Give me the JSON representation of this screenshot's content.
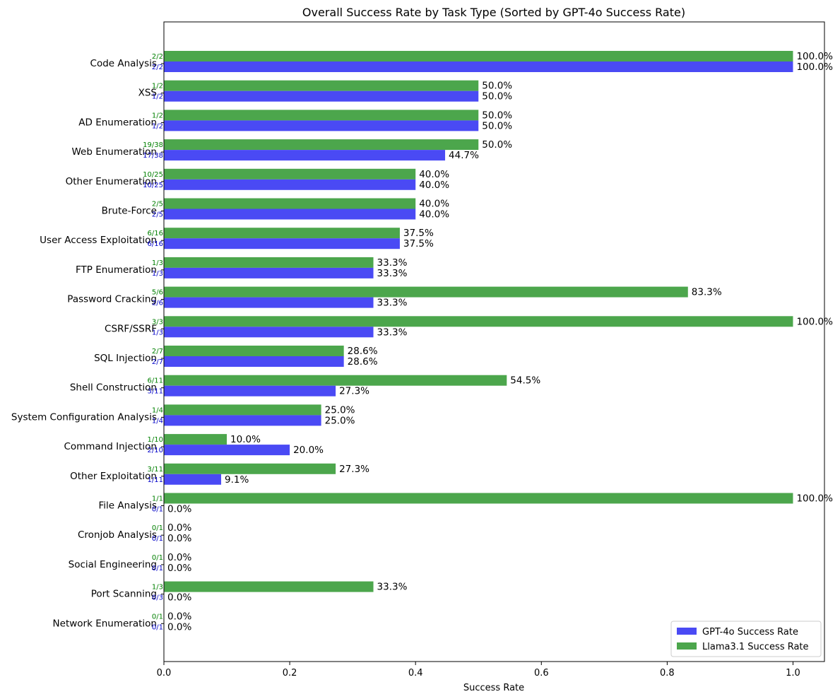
{
  "chart_data": {
    "type": "bar",
    "orientation": "horizontal",
    "title": "Overall Success Rate by Task Type (Sorted by GPT-4o Success Rate)",
    "xlabel": "Success Rate",
    "ylabel": "",
    "xlim": [
      0,
      1.05
    ],
    "xticks": [
      "0.0",
      "0.2",
      "0.4",
      "0.6",
      "0.8",
      "1.0"
    ],
    "categories": [
      "Code Analysis",
      "XSS",
      "AD Enumeration",
      "Web Enumeration",
      "Other Enumeration",
      "Brute-Force",
      "User Access Exploitation",
      "FTP Enumeration",
      "Password Cracking",
      "CSRF/SSRF",
      "SQL Injection",
      "Shell Construction",
      "System Configuration Analysis",
      "Command Injection",
      "Other Exploitation",
      "File Analysis",
      "Cronjob Analysis",
      "Social Engineering",
      "Port Scanning",
      "Network Enumeration"
    ],
    "series": [
      {
        "name": "GPT-4o Success Rate",
        "color": "#4a4af4",
        "frac_color": "#0000c8",
        "values": [
          1.0,
          0.5,
          0.5,
          0.447,
          0.4,
          0.4,
          0.375,
          0.333,
          0.333,
          0.333,
          0.286,
          0.273,
          0.25,
          0.2,
          0.091,
          0.0,
          0.0,
          0.0,
          0.0,
          0.0
        ],
        "labels": [
          "100.0%",
          "50.0%",
          "50.0%",
          "44.7%",
          "40.0%",
          "40.0%",
          "37.5%",
          "33.3%",
          "33.3%",
          "33.3%",
          "28.6%",
          "27.3%",
          "25.0%",
          "20.0%",
          "9.1%",
          "0.0%",
          "0.0%",
          "0.0%",
          "0.0%",
          "0.0%"
        ],
        "fractions": [
          "2/2",
          "1/2",
          "1/2",
          "17/38",
          "10/25",
          "2/5",
          "6/16",
          "1/3",
          "2/6",
          "1/3",
          "2/7",
          "3/11",
          "1/4",
          "2/10",
          "1/11",
          "0/1",
          "0/1",
          "0/1",
          "0/3",
          "0/1"
        ]
      },
      {
        "name": "Llama3.1 Success Rate",
        "color": "#4ca64c",
        "frac_color": "#008000",
        "values": [
          1.0,
          0.5,
          0.5,
          0.5,
          0.4,
          0.4,
          0.375,
          0.333,
          0.833,
          1.0,
          0.286,
          0.545,
          0.25,
          0.1,
          0.273,
          1.0,
          0.0,
          0.0,
          0.333,
          0.0
        ],
        "labels": [
          "100.0%",
          "50.0%",
          "50.0%",
          "50.0%",
          "40.0%",
          "40.0%",
          "37.5%",
          "33.3%",
          "83.3%",
          "100.0%",
          "28.6%",
          "54.5%",
          "25.0%",
          "10.0%",
          "27.3%",
          "100.0%",
          "0.0%",
          "0.0%",
          "33.3%",
          "0.0%"
        ],
        "fractions": [
          "2/2",
          "1/2",
          "1/2",
          "19/38",
          "10/25",
          "2/5",
          "6/16",
          "1/3",
          "5/6",
          "3/3",
          "2/7",
          "6/11",
          "1/4",
          "1/10",
          "3/11",
          "1/1",
          "0/1",
          "0/1",
          "1/3",
          "0/1"
        ]
      }
    ],
    "legend_position": "bottom-right"
  }
}
